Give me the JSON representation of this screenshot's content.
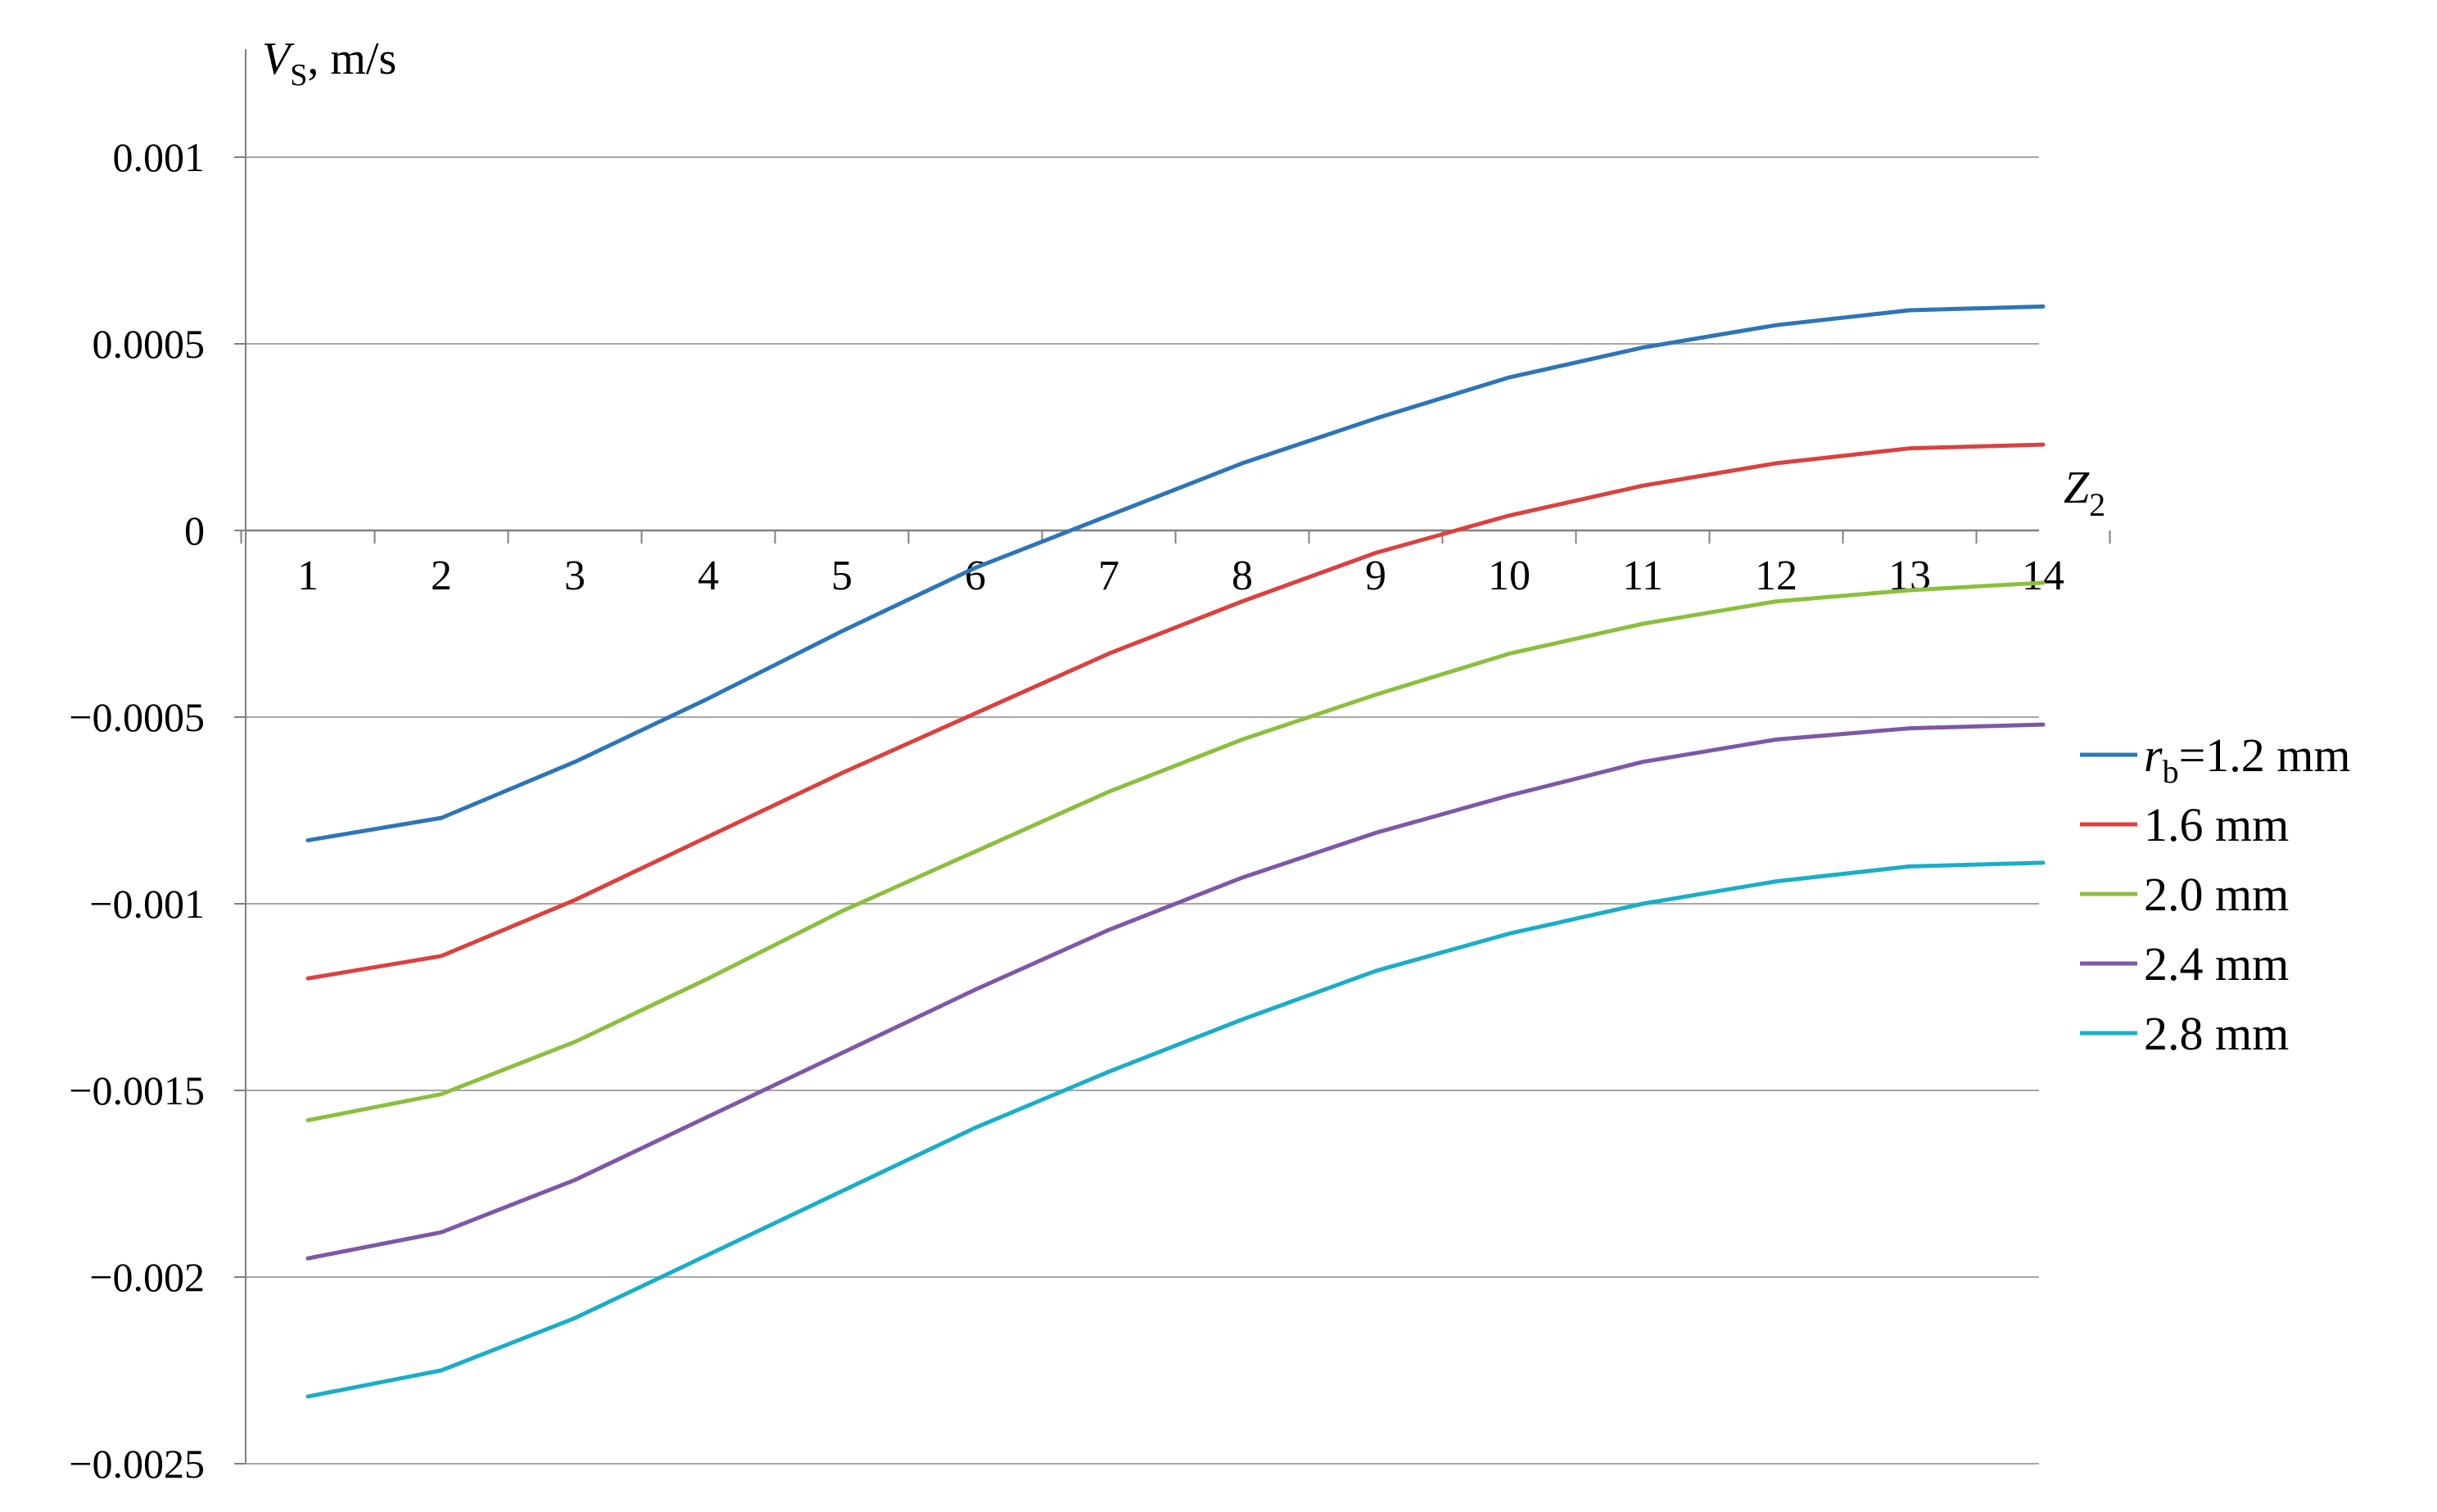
{
  "chart_data": {
    "type": "line",
    "x": [
      1,
      2,
      3,
      4,
      5,
      6,
      7,
      8,
      9,
      10,
      11,
      12,
      13,
      14
    ],
    "x_tick_labels": [
      "1",
      "2",
      "3",
      "4",
      "5",
      "6",
      "7",
      "8",
      "9",
      "10",
      "11",
      "12",
      "13",
      "14"
    ],
    "series": [
      {
        "name": "1.2 mm",
        "color": "#2E75B6",
        "values": [
          -0.00083,
          -0.00077,
          -0.00062,
          -0.00045,
          -0.00027,
          -0.0001,
          4e-05,
          0.00018,
          0.0003,
          0.00041,
          0.00049,
          0.00055,
          0.00059,
          0.0006
        ]
      },
      {
        "name": "1.6 mm",
        "color": "#D9423F",
        "values": [
          -0.0012,
          -0.00114,
          -0.00099,
          -0.00082,
          -0.00065,
          -0.00049,
          -0.00033,
          -0.00019,
          -6e-05,
          4e-05,
          0.00012,
          0.00018,
          0.00022,
          0.00023
        ]
      },
      {
        "name": "2.0 mm",
        "color": "#8BBF3F",
        "values": [
          -0.00158,
          -0.00151,
          -0.00137,
          -0.0012,
          -0.00102,
          -0.00086,
          -0.0007,
          -0.00056,
          -0.00044,
          -0.00033,
          -0.00025,
          -0.00019,
          -0.00016,
          -0.00014
        ]
      },
      {
        "name": "2.4 mm",
        "color": "#7E57A6",
        "values": [
          -0.00195,
          -0.00188,
          -0.00174,
          -0.00157,
          -0.0014,
          -0.00123,
          -0.00107,
          -0.00093,
          -0.00081,
          -0.00071,
          -0.00062,
          -0.00056,
          -0.00053,
          -0.00052
        ]
      },
      {
        "name": "2.8 mm",
        "color": "#1BADC8",
        "values": [
          -0.00232,
          -0.00225,
          -0.00211,
          -0.00194,
          -0.00177,
          -0.0016,
          -0.00145,
          -0.00131,
          -0.00118,
          -0.00108,
          -0.001,
          -0.00094,
          -0.0009,
          -0.00089
        ]
      }
    ],
    "y_ticks": [
      0.001,
      0.0005,
      0,
      -0.0005,
      -0.001,
      -0.0015,
      -0.002,
      -0.0025
    ],
    "y_tick_labels": [
      "0.001",
      "0.0005",
      "0",
      "−0.0005",
      "−0.001",
      "−0.0015",
      "−0.002",
      "−0.0025"
    ],
    "ylim": [
      -0.0025,
      0.0012
    ],
    "xlim": [
      0.5,
      14.5
    ],
    "ylabel_var": "V",
    "ylabel_sub": "S",
    "ylabel_unit": ", m/s",
    "xlabel_var": "Z",
    "xlabel_sub": "2",
    "legend_title_var": "r",
    "legend_title_sub": "b",
    "legend_title_eq": "=",
    "legend_position": "right",
    "grid": true
  }
}
